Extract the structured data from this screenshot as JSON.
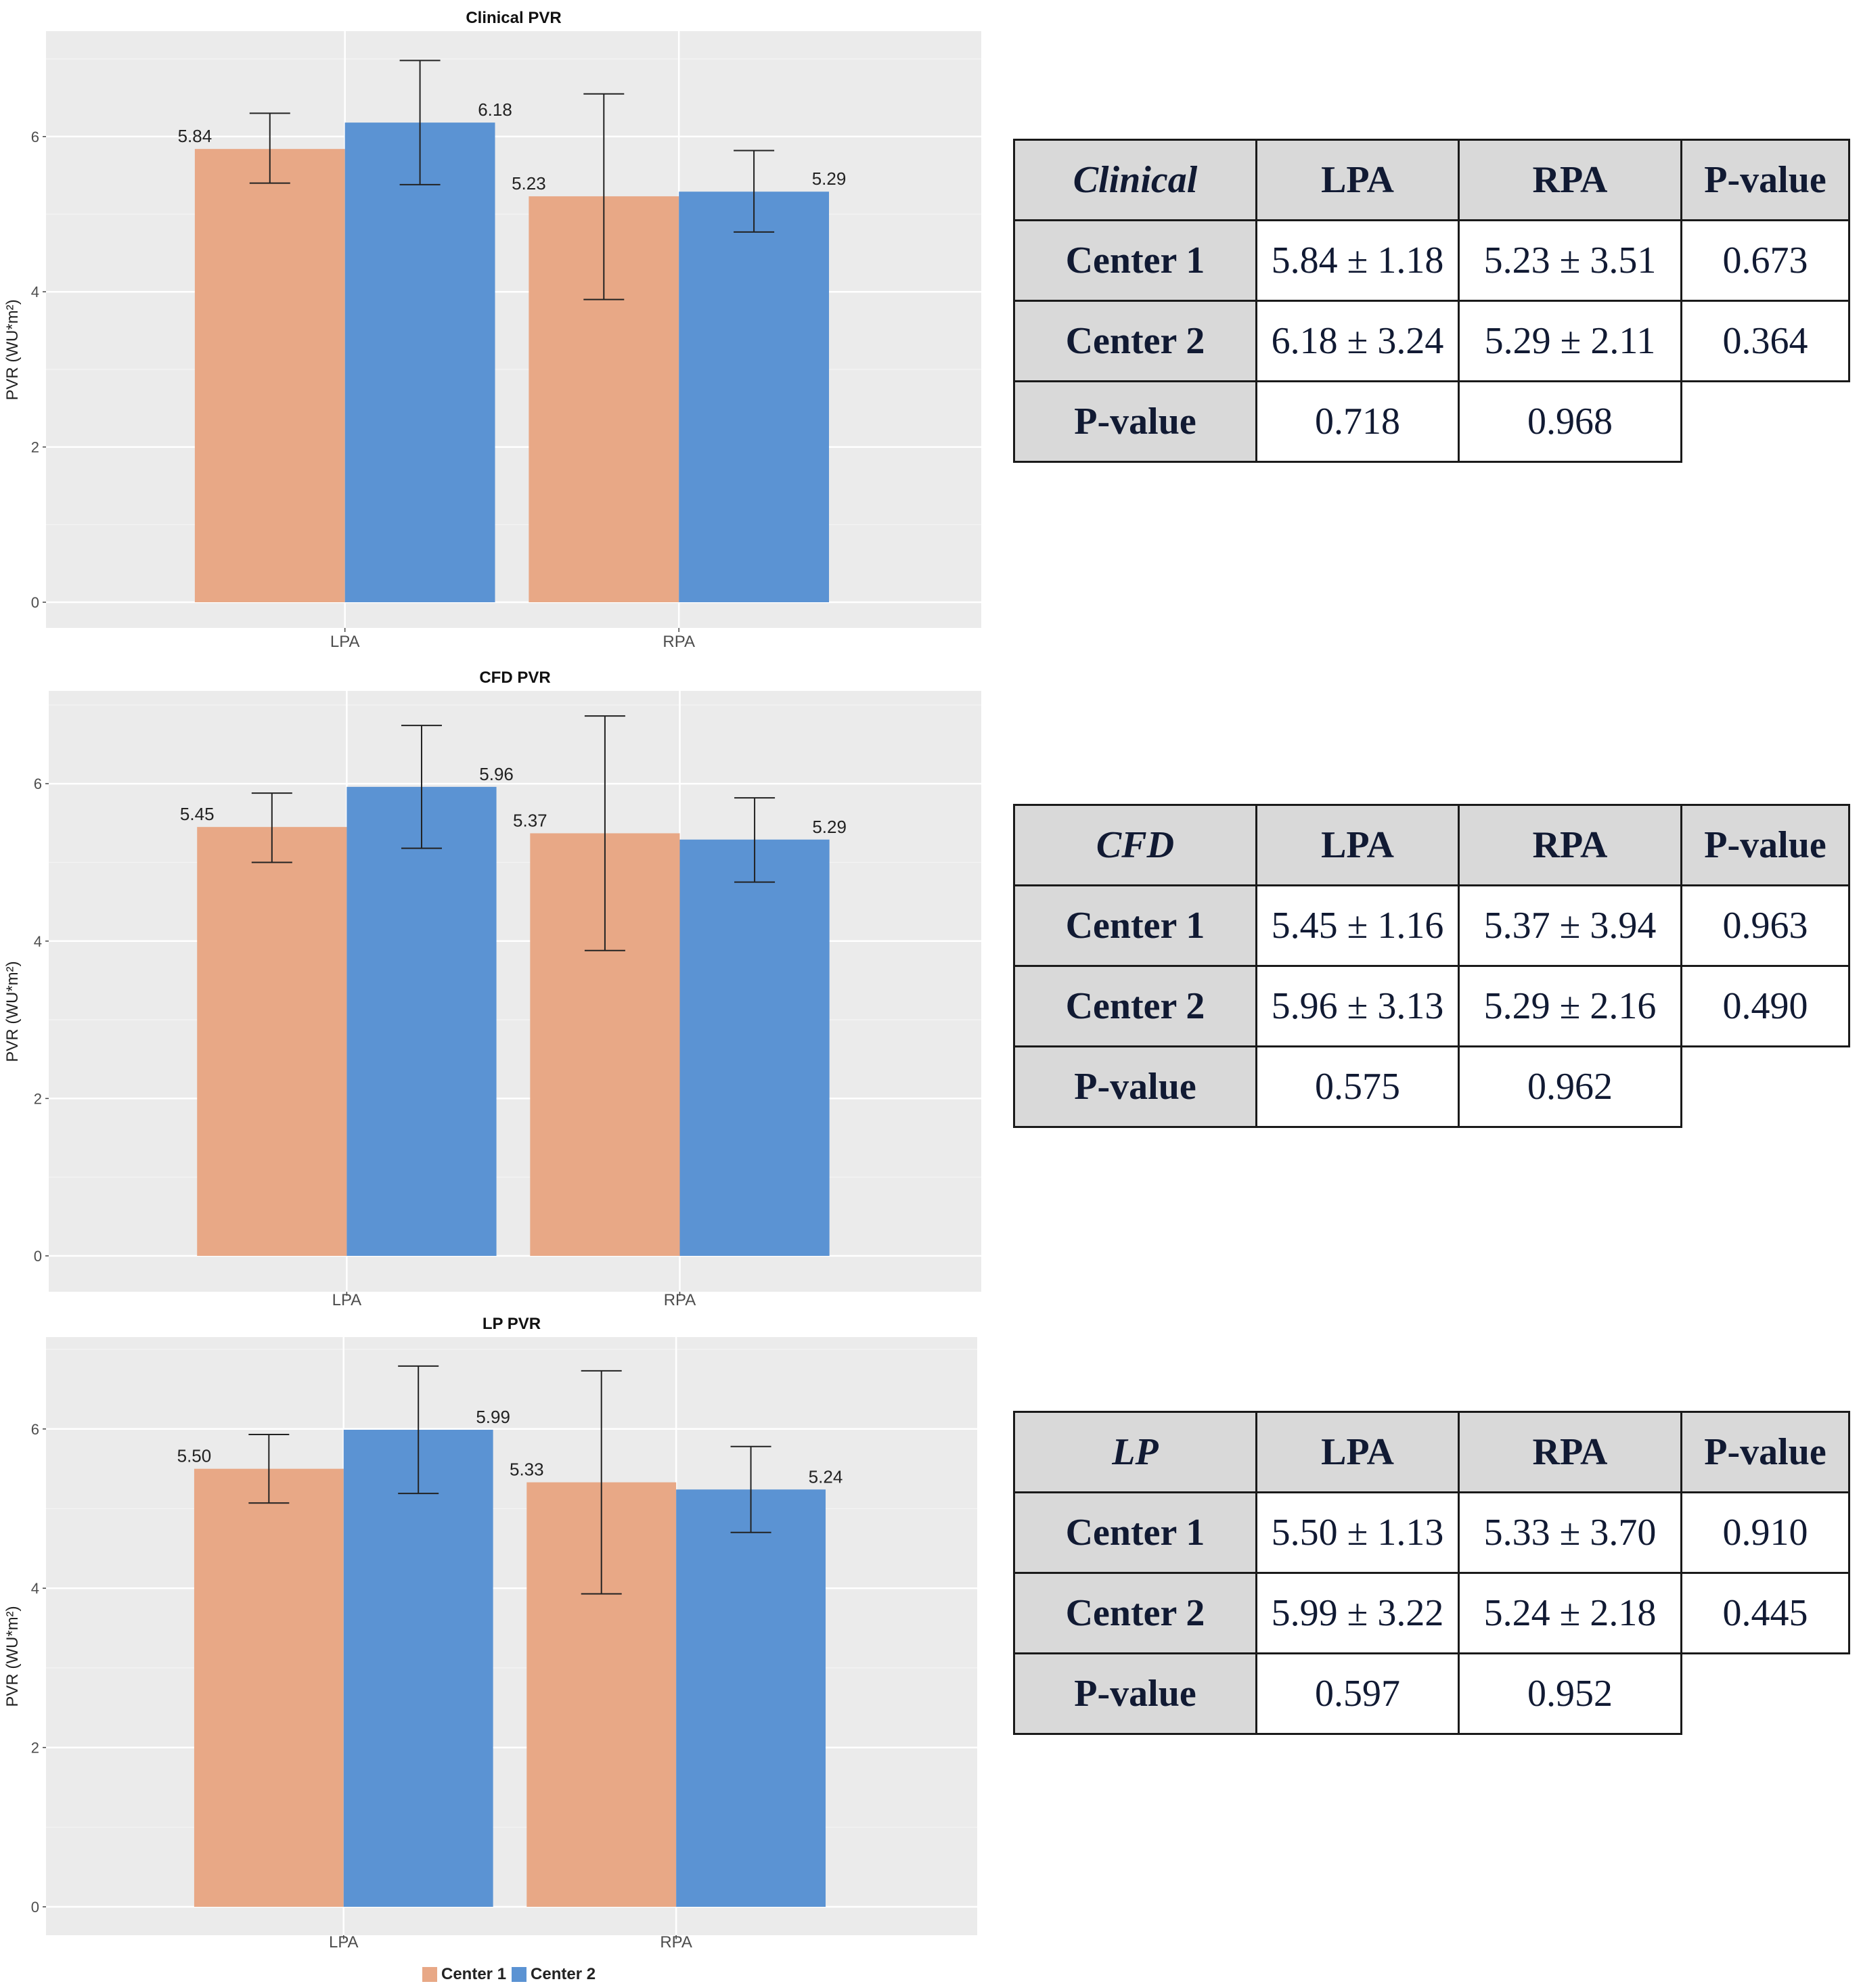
{
  "colors": {
    "center1": "#e8a886",
    "center2": "#5b93d3",
    "panel": "#ebebeb",
    "grid": "#ffffff"
  },
  "legend": {
    "items": [
      "Center 1",
      "Center 2"
    ]
  },
  "chart_data": [
    {
      "type": "bar",
      "title": "Clinical PVR",
      "ylabel": "PVR (WU*m²)",
      "xlabel": "",
      "categories": [
        "LPA",
        "RPA"
      ],
      "ylim": [
        0,
        7.2
      ],
      "yticks": [
        0,
        2,
        4,
        6
      ],
      "series": [
        {
          "name": "Center 1",
          "values": [
            5.84,
            5.23
          ],
          "err_low": [
            5.4,
            3.9
          ],
          "err_high": [
            6.3,
            6.55
          ]
        },
        {
          "name": "Center 2",
          "values": [
            6.18,
            5.29
          ],
          "err_low": [
            5.38,
            4.77
          ],
          "err_high": [
            6.98,
            5.82
          ]
        }
      ],
      "labels": [
        [
          "5.84",
          "5.23"
        ],
        [
          "6.18",
          "5.29"
        ]
      ]
    },
    {
      "type": "bar",
      "title": "CFD PVR",
      "ylabel": "PVR (WU*m²)",
      "xlabel": "",
      "categories": [
        "LPA",
        "RPA"
      ],
      "ylim": [
        0,
        7.2
      ],
      "yticks": [
        0,
        2,
        4,
        6
      ],
      "series": [
        {
          "name": "Center 1",
          "values": [
            5.45,
            5.37
          ],
          "err_low": [
            5.0,
            3.88
          ],
          "err_high": [
            5.88,
            6.86
          ]
        },
        {
          "name": "Center 2",
          "values": [
            5.96,
            5.29
          ],
          "err_low": [
            5.18,
            4.75
          ],
          "err_high": [
            6.74,
            5.82
          ]
        }
      ],
      "labels": [
        [
          "5.45",
          "5.37"
        ],
        [
          "5.96",
          "5.29"
        ]
      ]
    },
    {
      "type": "bar",
      "title": "LP PVR",
      "ylabel": "PVR (WU*m²)",
      "xlabel": "",
      "categories": [
        "LPA",
        "RPA"
      ],
      "ylim": [
        0,
        7.2
      ],
      "yticks": [
        0,
        2,
        4,
        6
      ],
      "series": [
        {
          "name": "Center 1",
          "values": [
            5.5,
            5.33
          ],
          "err_low": [
            5.07,
            3.93
          ],
          "err_high": [
            5.93,
            6.73
          ]
        },
        {
          "name": "Center 2",
          "values": [
            5.99,
            5.24
          ],
          "err_low": [
            5.19,
            4.7
          ],
          "err_high": [
            6.79,
            5.78
          ]
        }
      ],
      "labels": [
        [
          "5.50",
          "5.33"
        ],
        [
          "5.99",
          "5.24"
        ]
      ]
    }
  ],
  "tables": [
    {
      "corner": "Clinical",
      "headers": [
        "LPA",
        "RPA",
        "P-value"
      ],
      "rows": [
        [
          "Center 1",
          "5.84 ± 1.18",
          "5.23 ± 3.51",
          "0.673"
        ],
        [
          "Center 2",
          "6.18 ± 3.24",
          "5.29 ± 2.11",
          "0.364"
        ],
        [
          "P-value",
          "0.718",
          "0.968",
          ""
        ]
      ]
    },
    {
      "corner": "CFD",
      "headers": [
        "LPA",
        "RPA",
        "P-value"
      ],
      "rows": [
        [
          "Center 1",
          "5.45 ± 1.16",
          "5.37 ± 3.94",
          "0.963"
        ],
        [
          "Center 2",
          "5.96 ± 3.13",
          "5.29 ± 2.16",
          "0.490"
        ],
        [
          "P-value",
          "0.575",
          "0.962",
          ""
        ]
      ]
    },
    {
      "corner": "LP",
      "headers": [
        "LPA",
        "RPA",
        "P-value"
      ],
      "rows": [
        [
          "Center 1",
          "5.50 ± 1.13",
          "5.33 ± 3.70",
          "0.910"
        ],
        [
          "Center 2",
          "5.99 ± 3.22",
          "5.24 ± 2.18",
          "0.445"
        ],
        [
          "P-value",
          "0.597",
          "0.952",
          ""
        ]
      ]
    }
  ]
}
